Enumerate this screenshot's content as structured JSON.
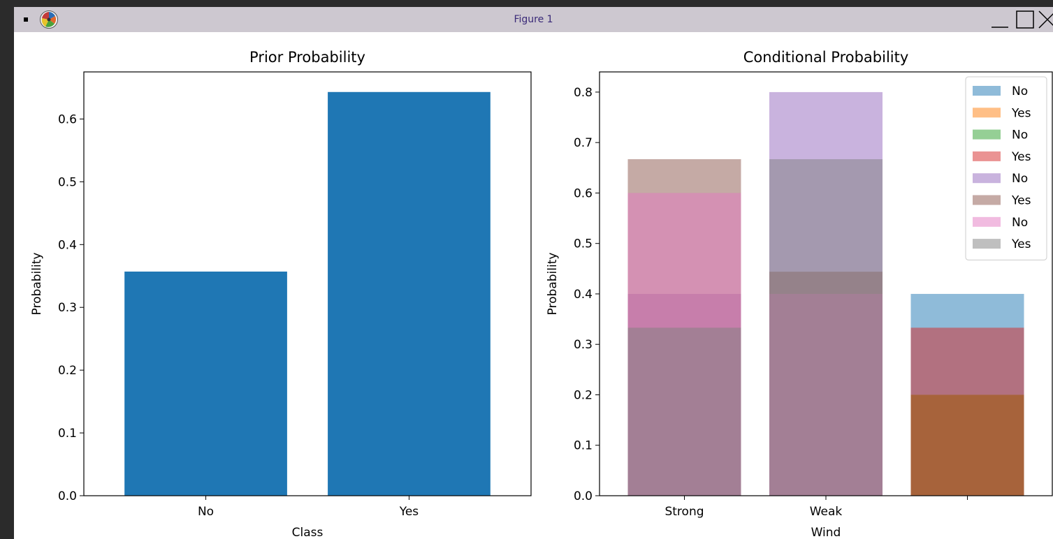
{
  "window": {
    "title": "Figure 1",
    "icons": {
      "menu": "window-menu-icon",
      "app": "matplotlib-icon",
      "minimize": "minimize-icon",
      "maximize": "maximize-icon",
      "close": "close-icon"
    }
  },
  "chart_data": [
    {
      "type": "bar",
      "title": "Prior Probability",
      "xlabel": "Class",
      "ylabel": "Probability",
      "categories": [
        "No",
        "Yes"
      ],
      "values": [
        0.357,
        0.643
      ],
      "ylim": [
        0,
        0.675
      ],
      "yticks": [
        "0.0",
        "0.1",
        "0.2",
        "0.3",
        "0.4",
        "0.5",
        "0.6"
      ],
      "color": "#1f77b4",
      "grid": false,
      "legend": false
    },
    {
      "type": "bar",
      "title": "Conditional Probability",
      "xlabel": "Wind",
      "ylabel": "Probability",
      "categories": [
        "Strong",
        "Weak",
        ""
      ],
      "ylim": [
        0,
        0.84
      ],
      "yticks": [
        "0.0",
        "0.1",
        "0.2",
        "0.3",
        "0.4",
        "0.5",
        "0.6",
        "0.7",
        "0.8"
      ],
      "grid": false,
      "legend_position": "top-right",
      "alpha": 0.5,
      "series": [
        {
          "name": "No",
          "color": "#1f77b4",
          "values": [
            null,
            null,
            0.4
          ]
        },
        {
          "name": "Yes",
          "color": "#ff7f0e",
          "values": [
            null,
            null,
            0.2
          ]
        },
        {
          "name": "No",
          "color": "#2ca02c",
          "values": [
            null,
            null,
            0.2
          ]
        },
        {
          "name": "Yes",
          "color": "#d62728",
          "values": [
            null,
            null,
            0.333
          ]
        },
        {
          "name": "No",
          "color": "#9467bd",
          "values": [
            0.4,
            0.8,
            null
          ]
        },
        {
          "name": "Yes",
          "color": "#8c564b",
          "values": [
            0.667,
            0.444,
            null
          ]
        },
        {
          "name": "No",
          "color": "#e377c2",
          "values": [
            0.6,
            0.4,
            null
          ]
        },
        {
          "name": "Yes",
          "color": "#7f7f7f",
          "values": [
            0.333,
            0.667,
            null
          ]
        }
      ]
    }
  ]
}
